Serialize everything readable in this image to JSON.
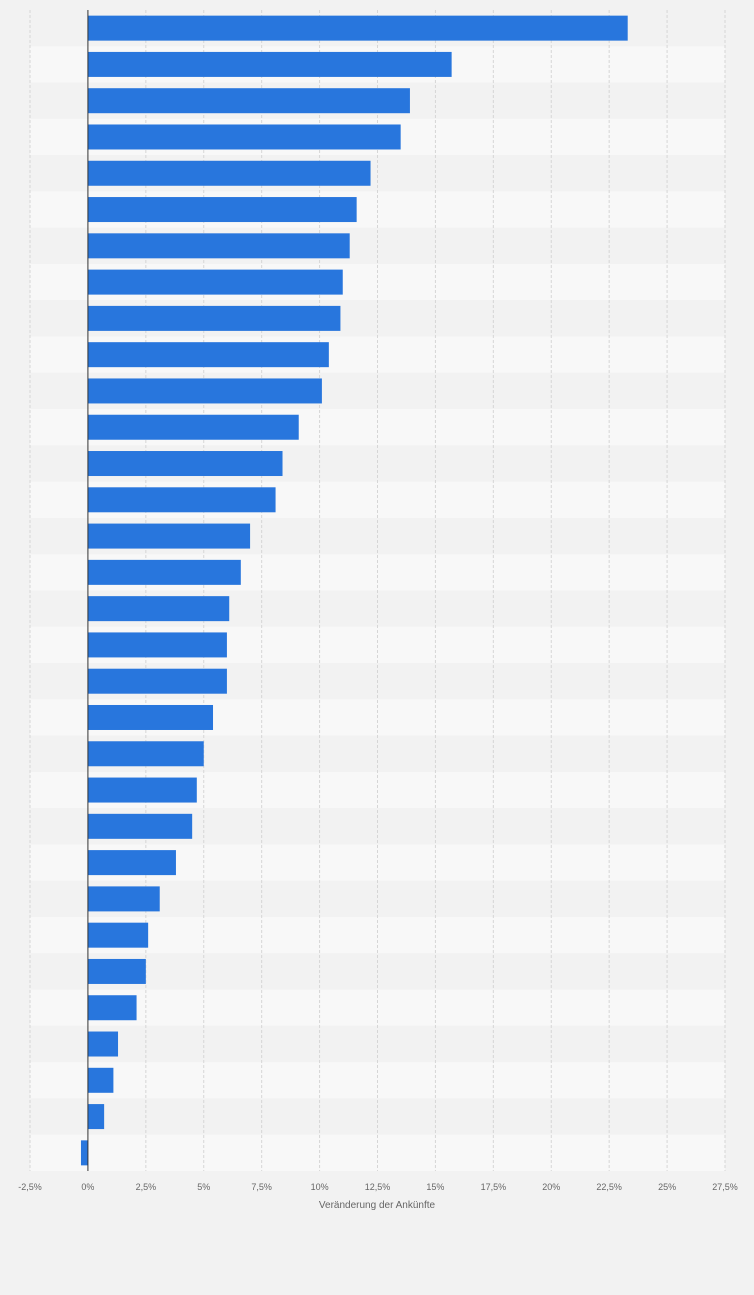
{
  "chart_data": {
    "type": "bar",
    "orientation": "horizontal",
    "title": "",
    "xlabel": "Veränderung der Ankünfte",
    "ylabel": "",
    "xlim": [
      -2.5,
      27.5
    ],
    "x_ticks": [
      -2.5,
      0,
      2.5,
      5,
      7.5,
      10,
      12.5,
      15,
      17.5,
      20,
      22.5,
      25,
      27.5
    ],
    "x_tick_labels": [
      "-2,5%",
      "0%",
      "2,5%",
      "5%",
      "7,5%",
      "10%",
      "12,5%",
      "15%",
      "17,5%",
      "20%",
      "22,5%",
      "25%",
      "27,5%"
    ],
    "grid": true,
    "bar_color": "#2876dd",
    "values": [
      23.3,
      15.7,
      13.9,
      13.5,
      12.2,
      11.6,
      11.3,
      11.0,
      10.9,
      10.4,
      10.1,
      9.1,
      8.4,
      8.1,
      7.0,
      6.6,
      6.1,
      6.0,
      6.0,
      5.4,
      5.0,
      4.7,
      4.5,
      3.8,
      3.1,
      2.6,
      2.5,
      2.1,
      1.3,
      1.1,
      0.7,
      -0.3
    ]
  }
}
